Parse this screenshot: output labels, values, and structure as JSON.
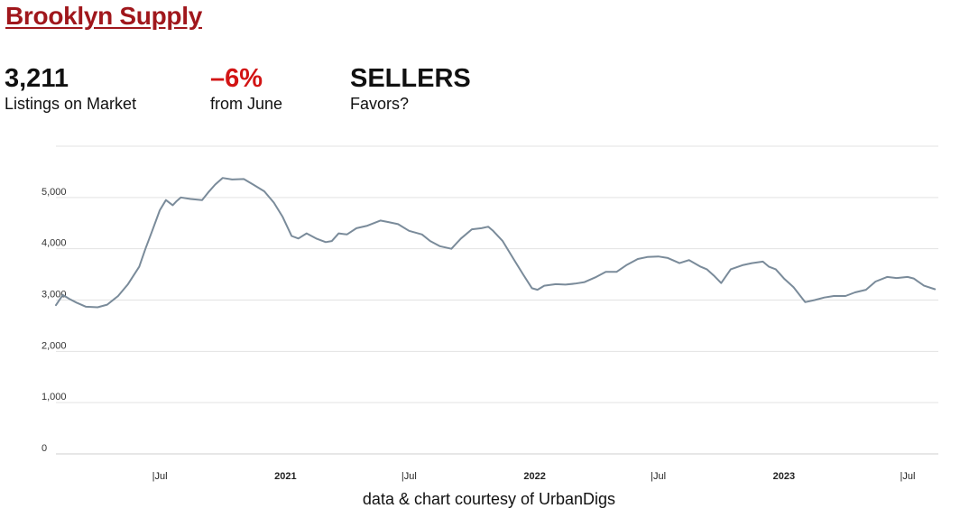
{
  "header": {
    "title": "Brooklyn Supply"
  },
  "stats": [
    {
      "value": "3,211",
      "label": "Listings on Market"
    },
    {
      "value": "–6%",
      "label": "from June"
    },
    {
      "value": "SELLERS",
      "label": "Favors?"
    }
  ],
  "footer": {
    "credit": "data & chart courtesy of UrbanDigs"
  },
  "colors": {
    "title": "#a0171c",
    "change": "#d21414",
    "line": "#7a8b9a",
    "grid": "#e3e3e3"
  },
  "chart_data": {
    "type": "line",
    "title": "",
    "xlabel": "",
    "ylabel": "",
    "ylim": [
      0,
      6000
    ],
    "yticks": [
      0,
      1000,
      2000,
      3000,
      4000,
      5000
    ],
    "ytick_labels": [
      "0",
      "1,000",
      "2,000",
      "3,000",
      "4,000",
      "5,000"
    ],
    "xlim": [
      "2020-01-31",
      "2023-08-15"
    ],
    "xticks": [
      {
        "date": "2020-07-01",
        "label": "Jul",
        "bold": false
      },
      {
        "date": "2021-01-01",
        "label": "2021",
        "bold": true
      },
      {
        "date": "2021-07-01",
        "label": "Jul",
        "bold": false
      },
      {
        "date": "2022-01-01",
        "label": "2022",
        "bold": true
      },
      {
        "date": "2022-07-01",
        "label": "Jul",
        "bold": false
      },
      {
        "date": "2023-01-01",
        "label": "2023",
        "bold": true
      },
      {
        "date": "2023-07-01",
        "label": "Jul",
        "bold": false
      }
    ],
    "grid": true,
    "series": [
      {
        "x": [
          "2020-01-31",
          "2020-02-10",
          "2020-02-20",
          "2020-03-01",
          "2020-03-15",
          "2020-04-01",
          "2020-04-15",
          "2020-05-01",
          "2020-05-15",
          "2020-06-01",
          "2020-06-10",
          "2020-06-20",
          "2020-07-01",
          "2020-07-10",
          "2020-07-20",
          "2020-07-25",
          "2020-08-01",
          "2020-08-15",
          "2020-09-01",
          "2020-09-10",
          "2020-09-20",
          "2020-10-01",
          "2020-10-15",
          "2020-11-01",
          "2020-11-15",
          "2020-12-01",
          "2020-12-15",
          "2020-12-28",
          "2021-01-10",
          "2021-01-20",
          "2021-02-01",
          "2021-02-15",
          "2021-03-01",
          "2021-03-10",
          "2021-03-20",
          "2021-04-01",
          "2021-04-15",
          "2021-05-01",
          "2021-05-20",
          "2021-06-01",
          "2021-06-15",
          "2021-07-01",
          "2021-07-20",
          "2021-08-01",
          "2021-08-15",
          "2021-09-01",
          "2021-09-15",
          "2021-10-01",
          "2021-10-15",
          "2021-10-25",
          "2021-11-01",
          "2021-11-15",
          "2021-12-01",
          "2021-12-15",
          "2021-12-28",
          "2022-01-05",
          "2022-01-15",
          "2022-02-01",
          "2022-02-15",
          "2022-03-01",
          "2022-03-15",
          "2022-04-01",
          "2022-04-15",
          "2022-05-01",
          "2022-05-15",
          "2022-06-01",
          "2022-06-15",
          "2022-07-01",
          "2022-07-15",
          "2022-08-01",
          "2022-08-15",
          "2022-09-01",
          "2022-09-10",
          "2022-09-20",
          "2022-10-01",
          "2022-10-15",
          "2022-11-01",
          "2022-11-15",
          "2022-12-01",
          "2022-12-10",
          "2022-12-20",
          "2023-01-01",
          "2023-01-15",
          "2023-02-01",
          "2023-02-15",
          "2023-03-01",
          "2023-03-15",
          "2023-04-01",
          "2023-04-15",
          "2023-05-01",
          "2023-05-15",
          "2023-06-01",
          "2023-06-15",
          "2023-07-01",
          "2023-07-10",
          "2023-07-25",
          "2023-08-10"
        ],
        "values": [
          2900,
          3100,
          3020,
          2950,
          2870,
          2860,
          2910,
          3080,
          3300,
          3650,
          4000,
          4350,
          4750,
          4950,
          4850,
          4920,
          5000,
          4970,
          4950,
          5100,
          5250,
          5380,
          5350,
          5360,
          5250,
          5120,
          4900,
          4620,
          4250,
          4200,
          4300,
          4200,
          4130,
          4150,
          4300,
          4280,
          4400,
          4450,
          4550,
          4520,
          4480,
          4350,
          4280,
          4150,
          4050,
          4000,
          4200,
          4380,
          4400,
          4430,
          4350,
          4150,
          3800,
          3500,
          3230,
          3200,
          3280,
          3310,
          3300,
          3320,
          3350,
          3450,
          3550,
          3550,
          3680,
          3800,
          3840,
          3850,
          3820,
          3720,
          3780,
          3650,
          3600,
          3480,
          3330,
          3600,
          3680,
          3720,
          3750,
          3650,
          3600,
          3420,
          3250,
          2960,
          3000,
          3050,
          3080,
          3080,
          3150,
          3200,
          3360,
          3450,
          3430,
          3450,
          3420,
          3280,
          3211
        ]
      }
    ]
  }
}
